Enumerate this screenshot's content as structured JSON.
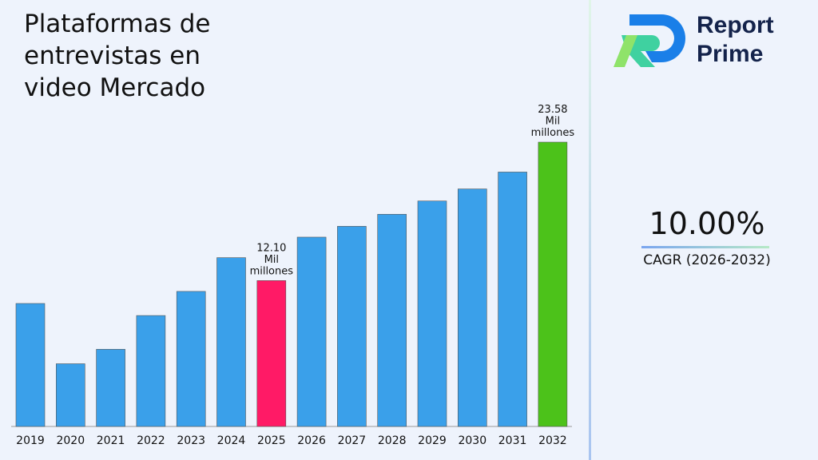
{
  "header": {
    "title": "Plataformas de entrevistas en video Mercado"
  },
  "brand": {
    "line1": "Report",
    "line2": "Prime"
  },
  "kpi": {
    "value": "10.00%",
    "label": "CAGR (2026-2032)"
  },
  "colors": {
    "default": "#3aa0ea",
    "highlight_2025": "#ff1a66",
    "highlight_2032": "#4cc21a"
  },
  "chart_data": {
    "type": "bar",
    "title": "Plataformas de entrevistas en video Mercado",
    "categories": [
      "2019",
      "2020",
      "2021",
      "2022",
      "2023",
      "2024",
      "2025",
      "2026",
      "2027",
      "2028",
      "2029",
      "2030",
      "2031",
      "2032"
    ],
    "values": [
      10.2,
      5.2,
      6.4,
      9.2,
      11.2,
      14.0,
      12.1,
      15.7,
      16.6,
      17.6,
      18.7,
      19.7,
      21.1,
      23.58
    ],
    "ylim": [
      0,
      23.58
    ],
    "grid": false,
    "data_labels": [
      {
        "category": "2025",
        "lines": [
          "12.10",
          "Mil",
          "millones"
        ]
      },
      {
        "category": "2032",
        "lines": [
          "23.58",
          "Mil",
          "millones"
        ]
      }
    ]
  }
}
